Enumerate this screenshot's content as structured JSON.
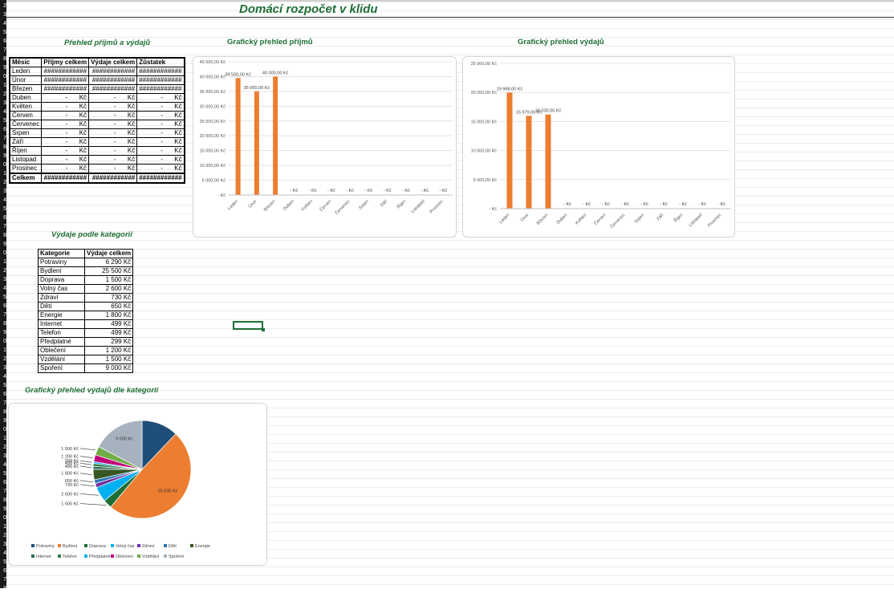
{
  "title": "Domácí rozpočet v klidu",
  "summary": {
    "heading": "Přehled příjmů a výdajů",
    "headers": [
      "Měsíc",
      "Příjmy celkem",
      "Výdaje celkem",
      "Zůstatek"
    ],
    "rows": [
      {
        "month": "Leden",
        "income": "############",
        "expense": "############",
        "balance": "############"
      },
      {
        "month": "Únor",
        "income": "############",
        "expense": "############",
        "balance": "############"
      },
      {
        "month": "Březen",
        "income": "############",
        "expense": "############",
        "balance": "############"
      },
      {
        "month": "Duben",
        "income": "-",
        "expense": "-",
        "balance": "-"
      },
      {
        "month": "Květen",
        "income": "-",
        "expense": "-",
        "balance": "-"
      },
      {
        "month": "Červen",
        "income": "-",
        "expense": "-",
        "balance": "-"
      },
      {
        "month": "Červenec",
        "income": "-",
        "expense": "-",
        "balance": "-"
      },
      {
        "month": "Srpen",
        "income": "-",
        "expense": "-",
        "balance": "-"
      },
      {
        "month": "Září",
        "income": "-",
        "expense": "-",
        "balance": "-"
      },
      {
        "month": "Říjen",
        "income": "-",
        "expense": "-",
        "balance": "-"
      },
      {
        "month": "Listopad",
        "income": "-",
        "expense": "-",
        "balance": "-"
      },
      {
        "month": "Prosinec",
        "income": "-",
        "expense": "-",
        "balance": "-"
      }
    ],
    "currency": "Kč",
    "total": {
      "label": "Celkem",
      "income": "############",
      "expense": "############",
      "balance": "############"
    }
  },
  "categories": {
    "heading": "Výdaje podle kategorií",
    "headers": [
      "Kategorie",
      "Výdaje celkem"
    ],
    "rows": [
      {
        "name": "Potraviny",
        "value": "6 290 Kč"
      },
      {
        "name": "Bydlení",
        "value": "25 500 Kč"
      },
      {
        "name": "Doprava",
        "value": "1 500 Kč"
      },
      {
        "name": "Volný čas",
        "value": "2 600 Kč"
      },
      {
        "name": "Zdraví",
        "value": "730 Kč"
      },
      {
        "name": "Děti",
        "value": "650 Kč"
      },
      {
        "name": "Energie",
        "value": "1 800 Kč"
      },
      {
        "name": "Internet",
        "value": "499 Kč"
      },
      {
        "name": "Telefon",
        "value": "499 Kč"
      },
      {
        "name": "Předplatné",
        "value": "299 Kč"
      },
      {
        "name": "Oblečení",
        "value": "1 200 Kč"
      },
      {
        "name": "Vzdělání",
        "value": "1 500 Kč"
      },
      {
        "name": "Spoření",
        "value": "9 000 Kč"
      }
    ]
  },
  "chart_data": [
    {
      "type": "bar",
      "title": "Grafický přehled příjmů",
      "categories": [
        "Leden",
        "Únor",
        "Březen",
        "Duben",
        "Květen",
        "Červen",
        "Červenec",
        "Srpen",
        "Září",
        "Říjen",
        "Listopad",
        "Prosinec"
      ],
      "values": [
        39500,
        35000,
        40000,
        0,
        0,
        0,
        0,
        0,
        0,
        0,
        0,
        0
      ],
      "data_labels": [
        "39 500,00 Kč",
        "35 000,00 Kč",
        "40 000,00 Kč",
        "- Kč",
        "- Kč",
        "- Kč",
        "- Kč",
        "- Kč",
        "- Kč",
        "- Kč",
        "- Kč",
        "- Kč"
      ],
      "ylim": [
        0,
        45000
      ],
      "yticks": [
        "- Kč",
        "5 000,00 Kč",
        "10 000,00 Kč",
        "15 000,00 Kč",
        "20 000,00 Kč",
        "25 000,00 Kč",
        "30 000,00 Kč",
        "35 000,00 Kč",
        "40 000,00 Kč",
        "45 000,00 Kč"
      ],
      "color": "#ed7d31",
      "grid": true
    },
    {
      "type": "bar",
      "title": "Grafický přehled výdajů",
      "categories": [
        "Leden",
        "Únor",
        "Březen",
        "Duben",
        "Květen",
        "Červen",
        "Červenec",
        "Srpen",
        "Září",
        "Říjen",
        "Listopad",
        "Prosinec"
      ],
      "values": [
        19968,
        15979,
        16200,
        0,
        0,
        0,
        0,
        0,
        0,
        0,
        0,
        0
      ],
      "data_labels": [
        "19 968,00 Kč",
        "15 979,00 Kč",
        "16 200,00 Kč",
        "- Kč",
        "- Kč",
        "- Kč",
        "- Kč",
        "- Kč",
        "- Kč",
        "- Kč",
        "- Kč",
        "- Kč"
      ],
      "ylim": [
        0,
        25000
      ],
      "yticks": [
        "- Kč",
        "5 000,00 Kč",
        "10 000,00 Kč",
        "15 000,00 Kč",
        "20 000,00 Kč",
        "25 000,00 Kč"
      ],
      "color": "#ed7d31",
      "grid": true
    },
    {
      "type": "pie",
      "title": "Grafický přehled výdajů dle kategorií",
      "categories": [
        "Potraviny",
        "Bydlení",
        "Doprava",
        "Volný čas",
        "Zdraví",
        "Děti",
        "Energie",
        "Internet",
        "Telefon",
        "Předplatné",
        "Oblečení",
        "Vzdělání",
        "Spoření"
      ],
      "values": [
        6290,
        25500,
        1500,
        2600,
        730,
        650,
        1800,
        499,
        499,
        299,
        1200,
        1500,
        9000
      ],
      "data_labels": [
        "",
        "25 500 Kč",
        "1 500 Kč",
        "2 600 Kč",
        "730 Kč",
        "650 Kč",
        "1 800 Kč",
        "499 Kč",
        "499 Kč",
        "299 Kč",
        "1 200 Kč",
        "1 500 Kč",
        "9 000 Kč"
      ],
      "colors": [
        "#1f4e79",
        "#ed7d31",
        "#1e6e34",
        "#00b0f0",
        "#7030a0",
        "#2e75b6",
        "#375623",
        "#2e6b5a",
        "#3a7d44",
        "#00b0f0",
        "#c00078",
        "#70ad47",
        "#a6b3bf"
      ],
      "legend_placement": "bottom"
    }
  ]
}
